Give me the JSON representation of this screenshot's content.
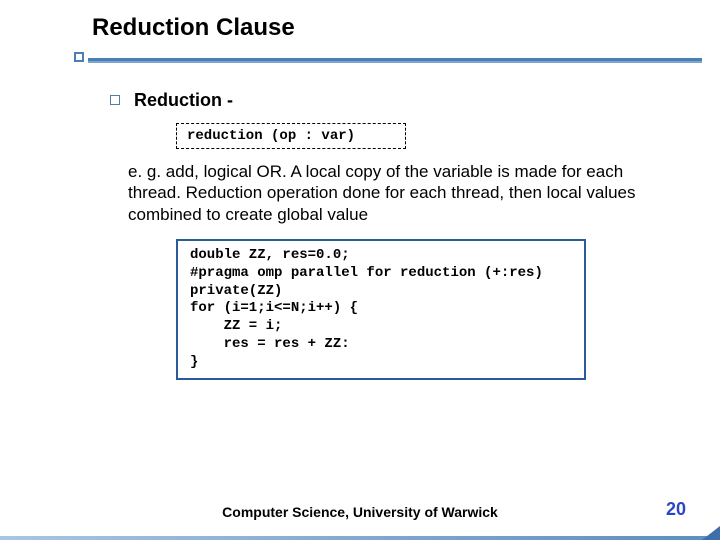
{
  "title": "Reduction Clause",
  "bullet": {
    "label": "Reduction -"
  },
  "syntax": "reduction (op : var)",
  "description": "e. g. add, logical OR. A local copy of the variable is made for each thread. Reduction operation done for each thread, then local values combined to create global value",
  "code": "double ZZ, res=0.0;\n#pragma omp parallel for reduction (+:res)\nprivate(ZZ)\nfor (i=1;i<=N;i++) {\n    ZZ = i;\n    res = res + ZZ:\n}",
  "footer": "Computer Science, University of Warwick",
  "page_number": "20",
  "colors": {
    "rule_primary": "#4a7fb5",
    "rule_secondary": "#7aa6ce",
    "code_border": "#2a5a9a",
    "page_num_color": "#2946c4",
    "bullet_border": "#567ca5"
  },
  "fonts": {
    "title_size": 24,
    "body_size": 17,
    "mono_size": 14
  }
}
